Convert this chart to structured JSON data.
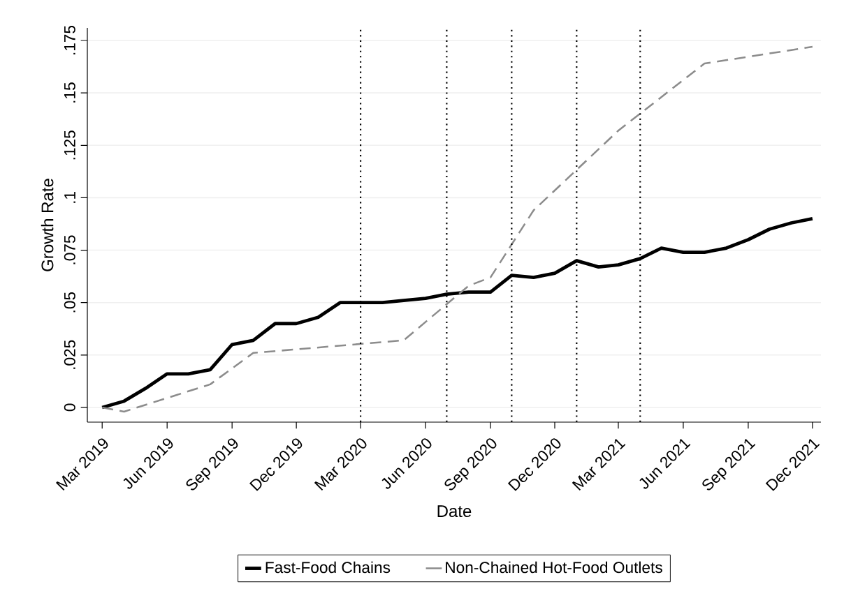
{
  "chart_data": {
    "type": "line",
    "xlabel": "Date",
    "ylabel": "Growth Rate",
    "xlim": [
      "2019-02-08",
      "2021-12-13"
    ],
    "ylim": [
      -0.007,
      0.181
    ],
    "xticks": [
      {
        "value": "2019-03",
        "label": "Mar 2019"
      },
      {
        "value": "2019-06",
        "label": "Jun 2019"
      },
      {
        "value": "2019-09",
        "label": "Sep 2019"
      },
      {
        "value": "2019-12",
        "label": "Dec 2019"
      },
      {
        "value": "2020-03",
        "label": "Mar 2020"
      },
      {
        "value": "2020-06",
        "label": "Jun 2020"
      },
      {
        "value": "2020-09",
        "label": "Sep 2020"
      },
      {
        "value": "2020-12",
        "label": "Dec 2020"
      },
      {
        "value": "2021-03",
        "label": "Mar 2021"
      },
      {
        "value": "2021-06",
        "label": "Jun 2021"
      },
      {
        "value": "2021-09",
        "label": "Sep 2021"
      },
      {
        "value": "2021-12",
        "label": "Dec 2021"
      }
    ],
    "yticks": [
      0,
      {
        "value": 0.025,
        "label": ".025"
      },
      {
        "value": 0.05,
        "label": ".05"
      },
      {
        "value": 0.075,
        "label": ".075"
      },
      {
        "value": 0.1,
        "label": ".1"
      },
      {
        "value": 0.125,
        "label": ".125"
      },
      {
        "value": 0.15,
        "label": ".15"
      },
      {
        "value": 0.175,
        "label": ".175"
      }
    ],
    "grid": "y",
    "legend": "bottom",
    "series": [
      {
        "name": "Fast-Food Chains",
        "color": "#000000",
        "line_style": "solid",
        "x": [
          "2019-03",
          "2019-04",
          "2019-05",
          "2019-06",
          "2019-07",
          "2019-08",
          "2019-09",
          "2019-10",
          "2019-11",
          "2019-12",
          "2020-01",
          "2020-02",
          "2020-03",
          "2020-04",
          "2020-05",
          "2020-06",
          "2020-07",
          "2020-08",
          "2020-09",
          "2020-10",
          "2020-11",
          "2020-12",
          "2021-01",
          "2021-02",
          "2021-03",
          "2021-04",
          "2021-05",
          "2021-06",
          "2021-07",
          "2021-08",
          "2021-09",
          "2021-10",
          "2021-11",
          "2021-12"
        ],
        "values": [
          0,
          0.003,
          0.009,
          0.016,
          0.016,
          0.018,
          0.03,
          0.032,
          0.04,
          0.04,
          0.043,
          0.05,
          0.05,
          0.05,
          0.051,
          0.052,
          0.054,
          0.055,
          0.055,
          0.063,
          0.062,
          0.064,
          0.07,
          0.067,
          0.068,
          0.071,
          0.076,
          0.074,
          0.074,
          0.076,
          0.08,
          0.085,
          0.088,
          0.09
        ]
      },
      {
        "name": "Non-Chained Hot-Food Outlets",
        "color": "#8c8c8c",
        "line_style": "dashed",
        "x": [
          "2019-03",
          "2019-04",
          "2019-08",
          "2019-10",
          "2020-05",
          "2020-08",
          "2020-09",
          "2020-11",
          "2021-03",
          "2021-07",
          "2021-12"
        ],
        "values": [
          0,
          -0.002,
          0.011,
          0.026,
          0.032,
          0.058,
          0.062,
          0.094,
          0.132,
          0.164,
          0.172
        ]
      }
    ],
    "ref_lines": [
      {
        "axis": "x",
        "value": "2020-03",
        "color": "#000000",
        "line_style": "dotted"
      },
      {
        "axis": "x",
        "value": "2020-07",
        "color": "#000000",
        "line_style": "dotted"
      },
      {
        "axis": "x",
        "value": "2020-10",
        "color": "#000000",
        "line_style": "dotted"
      },
      {
        "axis": "x",
        "value": "2021-01",
        "color": "#000000",
        "line_style": "dotted"
      },
      {
        "axis": "x",
        "value": "2021-04",
        "color": "#000000",
        "line_style": "dotted"
      }
    ]
  }
}
